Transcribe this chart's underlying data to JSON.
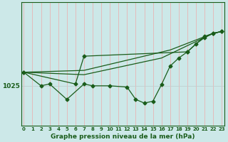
{
  "title": "Graphe pression niveau de la mer (hPa)",
  "background_color": "#cce8e8",
  "line_color": "#1a5c1a",
  "vgrid_color": "#e8b4b4",
  "hgrid_color": "#c0d0d0",
  "hours": [
    0,
    1,
    2,
    3,
    4,
    5,
    6,
    7,
    8,
    9,
    10,
    11,
    12,
    13,
    14,
    15,
    16,
    17,
    18,
    19,
    20,
    21,
    22,
    23
  ],
  "main_x": [
    0,
    2,
    3,
    5,
    7,
    8,
    10,
    12,
    13,
    14,
    15,
    16,
    17,
    18,
    19,
    20,
    21,
    22,
    23
  ],
  "main_y": [
    1027.2,
    1025.0,
    1025.3,
    1022.8,
    1025.3,
    1025.0,
    1025.0,
    1024.8,
    1022.8,
    1022.2,
    1022.5,
    1025.2,
    1028.2,
    1029.5,
    1030.5,
    1031.8,
    1032.8,
    1033.5,
    1033.8
  ],
  "trend1_x": [
    0,
    7,
    17,
    22,
    23
  ],
  "trend1_y": [
    1027.2,
    1027.5,
    1030.8,
    1033.5,
    1033.8
  ],
  "trend2_x": [
    0,
    7,
    16,
    22,
    23
  ],
  "trend2_y": [
    1027.2,
    1026.8,
    1029.5,
    1033.5,
    1033.8
  ],
  "trend3_x": [
    0,
    6,
    7,
    19,
    21,
    22,
    23
  ],
  "trend3_y": [
    1027.2,
    1025.3,
    1029.8,
    1030.5,
    1033.0,
    1033.5,
    1033.8
  ],
  "ylim": [
    1018.5,
    1038.5
  ],
  "ytick_val": 1025,
  "xlim_left": -0.3,
  "xlim_right": 23.3
}
